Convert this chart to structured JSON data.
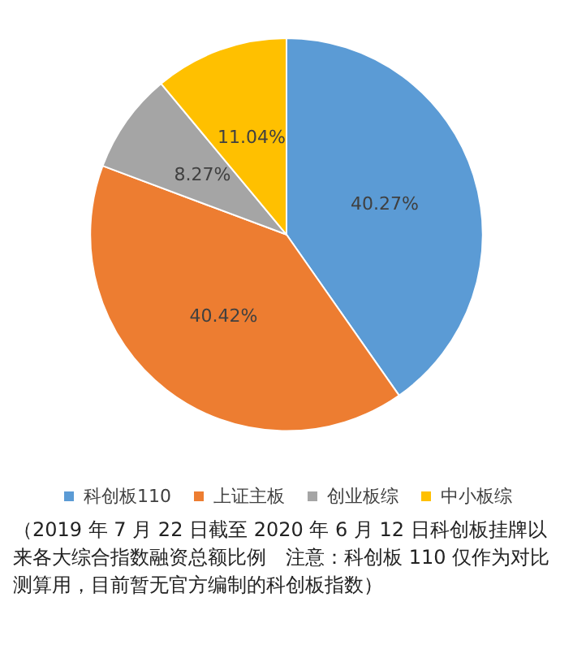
{
  "chart_data": {
    "type": "pie",
    "categories": [
      "科创板110",
      "上证主板",
      "创业板综",
      "中小板综"
    ],
    "values": [
      40.27,
      40.42,
      8.27,
      11.04
    ],
    "value_labels": [
      "40.27%",
      "40.42%",
      "8.27%",
      "11.04%"
    ],
    "colors": [
      "#5b9bd5",
      "#ed7d31",
      "#a5a5a5",
      "#ffc000"
    ],
    "legend": "bottom",
    "annotations": [
      "（2019 年 7 月 22 日截至 2020 年 6 月 12 日科创板挂牌以来各大综合指数融资总额比例　注意：科创板 110 仅作为对比测算用，目前暂无官方编制的科创板指数）"
    ]
  }
}
